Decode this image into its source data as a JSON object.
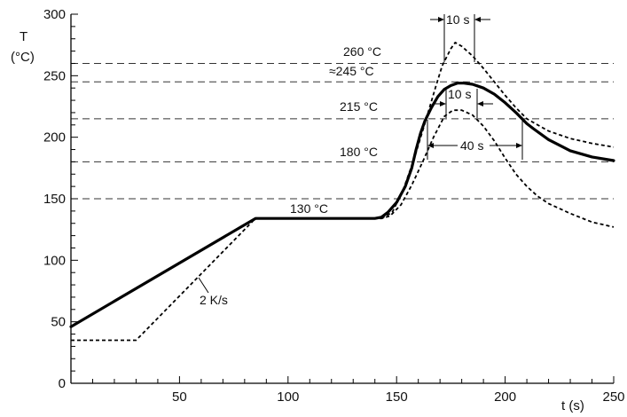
{
  "chart_data": {
    "type": "line",
    "xlabel": "t (s)",
    "ylabel_line1": "T",
    "ylabel_line2": "(°C)",
    "xlim": [
      0,
      250
    ],
    "ylim": [
      0,
      300
    ],
    "x_ticks": [
      50,
      100,
      150,
      200,
      250
    ],
    "y_ticks": [
      0,
      50,
      100,
      150,
      200,
      250,
      300
    ],
    "x_minor_step": 10,
    "y_minor_step": 10,
    "grid": false,
    "reference_lines": [
      {
        "y": 260,
        "label": "260 °C"
      },
      {
        "y": 245,
        "label": "≈245 °C"
      },
      {
        "y": 215,
        "label": "215 °C"
      },
      {
        "y": 180,
        "label": "180 °C"
      },
      {
        "y": 150,
        "label": ""
      }
    ],
    "series": [
      {
        "style": "solid",
        "points": [
          [
            0,
            46
          ],
          [
            85,
            134
          ],
          [
            100,
            134
          ],
          [
            120,
            134
          ],
          [
            140,
            134
          ],
          [
            143,
            135
          ],
          [
            146,
            139
          ],
          [
            150,
            147
          ],
          [
            154,
            160
          ],
          [
            157,
            175
          ],
          [
            159,
            190
          ],
          [
            161,
            203
          ],
          [
            163,
            213
          ],
          [
            166,
            224
          ],
          [
            169,
            233
          ],
          [
            172,
            239
          ],
          [
            175,
            242
          ],
          [
            178,
            244
          ],
          [
            181,
            244
          ],
          [
            185,
            243
          ],
          [
            190,
            240
          ],
          [
            195,
            235
          ],
          [
            200,
            228
          ],
          [
            205,
            220
          ],
          [
            210,
            211
          ],
          [
            213,
            207
          ],
          [
            220,
            198
          ],
          [
            230,
            189
          ],
          [
            240,
            184
          ],
          [
            250,
            181
          ]
        ]
      },
      {
        "style": "dashed",
        "points": [
          [
            0,
            35
          ],
          [
            30,
            35
          ],
          [
            85,
            134
          ],
          [
            143,
            134
          ],
          [
            147,
            136
          ],
          [
            152,
            145
          ],
          [
            157,
            161
          ],
          [
            162,
            180
          ],
          [
            167,
            200
          ],
          [
            172,
            217
          ],
          [
            176,
            222
          ],
          [
            180,
            222
          ],
          [
            185,
            218
          ],
          [
            190,
            209
          ],
          [
            195,
            197
          ],
          [
            200,
            183
          ],
          [
            205,
            170
          ],
          [
            210,
            160
          ],
          [
            215,
            152
          ],
          [
            220,
            146
          ],
          [
            230,
            138
          ],
          [
            240,
            131
          ],
          [
            250,
            127
          ]
        ]
      },
      {
        "style": "dashed",
        "points": [
          [
            143,
            134
          ],
          [
            148,
            139
          ],
          [
            153,
            157
          ],
          [
            158,
            182
          ],
          [
            163,
            211
          ],
          [
            168,
            241
          ],
          [
            171,
            258
          ],
          [
            175,
            272
          ],
          [
            177,
            277
          ],
          [
            180,
            274
          ],
          [
            185,
            266
          ],
          [
            190,
            256
          ],
          [
            195,
            245
          ],
          [
            200,
            234
          ],
          [
            205,
            224
          ],
          [
            210,
            215
          ],
          [
            215,
            210
          ],
          [
            220,
            205
          ],
          [
            230,
            199
          ],
          [
            240,
            195
          ],
          [
            250,
            192
          ]
        ]
      }
    ],
    "annotations": [
      {
        "text": "130 °C"
      },
      {
        "text": "2 K/s"
      },
      {
        "text": "10 s"
      },
      {
        "text": "10 s"
      },
      {
        "text": "40 s"
      }
    ]
  }
}
